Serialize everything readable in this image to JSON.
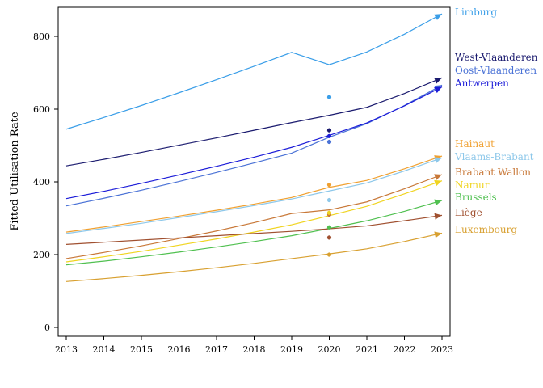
{
  "chart_data": {
    "type": "line",
    "title": "",
    "xlabel": "",
    "ylabel": "Fitted Utilisation Rate",
    "x": [
      2013,
      2014,
      2015,
      2016,
      2017,
      2018,
      2019,
      2020,
      2021,
      2022,
      2023
    ],
    "xticks": [
      "2013",
      "2014",
      "2015",
      "2016",
      "2017",
      "2018",
      "2019",
      "2020",
      "2021",
      "2022",
      "2023"
    ],
    "yticks": [
      "0",
      "200",
      "400",
      "600",
      "800"
    ],
    "xlim": [
      2013,
      2023
    ],
    "ylim": [
      0,
      880
    ],
    "legend": "labels at line ends",
    "series": [
      {
        "name": "Limburg",
        "color": "#3a9ee8",
        "values": [
          545,
          577,
          610,
          645,
          681,
          718,
          756,
          722,
          757,
          806,
          862
        ],
        "point_2020": 633
      },
      {
        "name": "West-Vlaanderen",
        "color": "#1a1a6e",
        "values": [
          444,
          462,
          481,
          501,
          521,
          542,
          563,
          583,
          605,
          643,
          686
        ],
        "point_2020": 542
      },
      {
        "name": "Oost-Vlaanderen",
        "color": "#4a72d6",
        "values": [
          334,
          355,
          377,
          401,
          426,
          452,
          479,
          523,
          560,
          610,
          666
        ],
        "point_2020": 510
      },
      {
        "name": "Antwerpen",
        "color": "#1c1cd8",
        "values": [
          354,
          374,
          396,
          419,
          443,
          468,
          495,
          528,
          562,
          609,
          661
        ],
        "point_2020": 526
      },
      {
        "name": "Hainaut",
        "color": "#f0a030",
        "values": [
          262,
          276,
          291,
          306,
          322,
          339,
          357,
          385,
          404,
          436,
          471
        ],
        "point_2020": 392
      },
      {
        "name": "Vlaams-Brabant",
        "color": "#8ec8ea",
        "values": [
          258,
          272,
          286,
          302,
          318,
          335,
          353,
          375,
          397,
          430,
          466
        ],
        "point_2020": 350
      },
      {
        "name": "Brabant Wallon",
        "color": "#c87838",
        "values": [
          189,
          206,
          224,
          244,
          265,
          288,
          313,
          323,
          345,
          381,
          420
        ],
        "point_2020": 310
      },
      {
        "name": "Namur",
        "color": "#f0d420",
        "values": [
          180,
          194,
          209,
          226,
          243,
          262,
          282,
          307,
          333,
          367,
          403
        ],
        "point_2020": 315
      },
      {
        "name": "Brussels",
        "color": "#50c050",
        "values": [
          172,
          182,
          194,
          207,
          221,
          236,
          252,
          272,
          293,
          319,
          349
        ],
        "point_2020": 275
      },
      {
        "name": "Liège",
        "color": "#a05030",
        "values": [
          228,
          234,
          240,
          246,
          252,
          258,
          264,
          271,
          279,
          293,
          308
        ],
        "point_2020": 247
      },
      {
        "name": "Luxembourg",
        "color": "#d8a030",
        "values": [
          126,
          134,
          143,
          153,
          164,
          176,
          189,
          202,
          216,
          236,
          259
        ],
        "point_2020": 200
      }
    ]
  }
}
